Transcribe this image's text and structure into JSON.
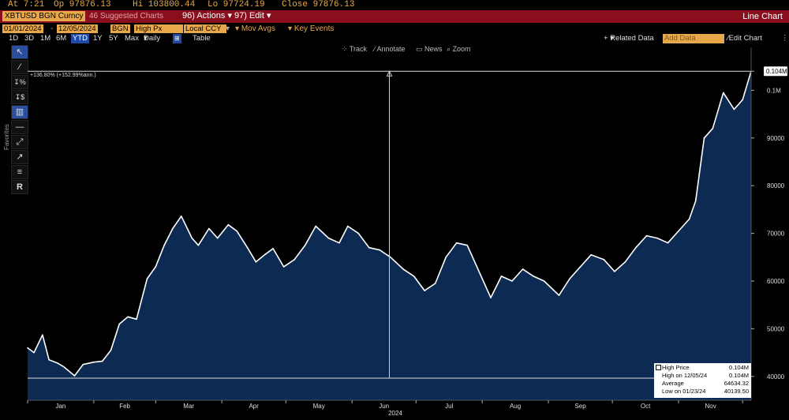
{
  "header": {
    "at": "At 7:21",
    "op": "Op 97876.13",
    "hi": "Hi 103800.44",
    "lo": "Lo 97724.19",
    "close": "Close 97876.13"
  },
  "titlebar": {
    "ticker": "XBTUSD BGN Curncy",
    "suggested": "46 Suggested Charts",
    "actions": "96) Actions",
    "edit": "97) Edit",
    "chart_type": "Line Chart"
  },
  "controls": {
    "start_date": "01/01/2024",
    "end_date": "12/05/2024",
    "source": "BGN",
    "field": "High Px",
    "currency": "Local CCY",
    "mov_avgs": "Mov Avgs",
    "key_events": "Key Events",
    "related_data": "Related Data",
    "add_data": "Add Data",
    "edit_chart": "Edit Chart",
    "periods": [
      "1D",
      "3D",
      "1M",
      "6M",
      "YTD",
      "1Y",
      "5Y",
      "Max"
    ],
    "selected_period": "YTD",
    "frequency": "Daily",
    "table": "Table"
  },
  "chart_tools": [
    "Track",
    "Annotate",
    "News",
    "Zoom"
  ],
  "toolbar": {
    "label": "Favorites",
    "icons": [
      "cursor-icon",
      "pencil-icon",
      "percent-icon",
      "dollar-icon",
      "bar-select-icon",
      "horizontal-line-icon",
      "trend-line-icon",
      "ray-line-icon",
      "fib-icon",
      "text-icon"
    ]
  },
  "legend": {
    "rows": [
      {
        "label": "High Price",
        "value": "0.104M"
      },
      {
        "label": "High on 12/05/24",
        "value": "0.104M"
      },
      {
        "label": "Average",
        "value": "64634.32"
      },
      {
        "label": "Low on 01/23/24",
        "value": "40139.50"
      }
    ]
  },
  "annotation": "+136.80% (+152.99%ann.)",
  "last_value_label": "0.104M",
  "colors": {
    "line": "#ffffff",
    "fill": "#0d2b52",
    "accent": "#e8a84a",
    "bar": "#8a0f1c"
  },
  "chart_data": {
    "type": "area",
    "title": "",
    "xlabel": "2024",
    "ylabel": "",
    "xlim": [
      "2024-01-01",
      "2024-12-05"
    ],
    "ylim": [
      35000,
      109000
    ],
    "y_ticks": [
      40000,
      50000,
      60000,
      70000,
      80000,
      90000,
      100000,
      104000
    ],
    "y_tick_labels": [
      "40000",
      "50000",
      "60000",
      "70000",
      "80000",
      "90000",
      "0.1M",
      "0.104M"
    ],
    "x_tick_labels": [
      "Jan",
      "Feb",
      "Mar",
      "Apr",
      "May",
      "Jun",
      "Jul",
      "Aug",
      "Sep",
      "Oct",
      "Nov"
    ],
    "grid": false,
    "legend_position": "bottom-right",
    "series": [
      {
        "x": [
          "2024-01-01",
          "2024-01-04",
          "2024-01-08",
          "2024-01-11",
          "2024-01-15",
          "2024-01-18",
          "2024-01-23",
          "2024-01-27",
          "2024-02-01",
          "2024-02-05",
          "2024-02-09",
          "2024-02-13",
          "2024-02-17",
          "2024-02-21",
          "2024-02-26",
          "2024-03-01",
          "2024-03-05",
          "2024-03-09",
          "2024-03-13",
          "2024-03-18",
          "2024-03-21",
          "2024-03-26",
          "2024-03-30",
          "2024-04-04",
          "2024-04-08",
          "2024-04-13",
          "2024-04-17",
          "2024-04-21",
          "2024-04-25",
          "2024-04-30",
          "2024-05-05",
          "2024-05-10",
          "2024-05-15",
          "2024-05-21",
          "2024-05-26",
          "2024-05-30",
          "2024-06-04",
          "2024-06-09",
          "2024-06-14",
          "2024-06-19",
          "2024-06-25",
          "2024-06-30",
          "2024-07-05",
          "2024-07-10",
          "2024-07-15",
          "2024-07-20",
          "2024-07-25",
          "2024-07-30",
          "2024-08-05",
          "2024-08-10",
          "2024-08-15",
          "2024-08-20",
          "2024-08-25",
          "2024-08-30",
          "2024-09-06",
          "2024-09-11",
          "2024-09-16",
          "2024-09-21",
          "2024-09-27",
          "2024-10-02",
          "2024-10-07",
          "2024-10-12",
          "2024-10-17",
          "2024-10-22",
          "2024-10-27",
          "2024-11-01",
          "2024-11-06",
          "2024-11-09",
          "2024-11-13",
          "2024-11-17",
          "2024-11-22",
          "2024-11-27",
          "2024-12-01",
          "2024-12-05"
        ],
        "values": [
          46000,
          45000,
          48700,
          43500,
          42800,
          42000,
          40140,
          42500,
          43000,
          43200,
          45500,
          51000,
          52500,
          52000,
          60500,
          63000,
          67500,
          71000,
          73600,
          69000,
          67500,
          71000,
          69000,
          71800,
          70500,
          67000,
          64000,
          65500,
          66800,
          63000,
          64500,
          67500,
          71500,
          69000,
          68000,
          71500,
          70000,
          67000,
          66500,
          65000,
          62500,
          61000,
          58000,
          59500,
          65000,
          68000,
          67500,
          62500,
          56500,
          61000,
          60000,
          62500,
          61000,
          60000,
          57000,
          60500,
          63000,
          65500,
          64500,
          62000,
          64000,
          67000,
          69500,
          69000,
          68000,
          70500,
          73000,
          76800,
          90000,
          92000,
          99500,
          96000,
          98000,
          104000
        ]
      }
    ]
  }
}
